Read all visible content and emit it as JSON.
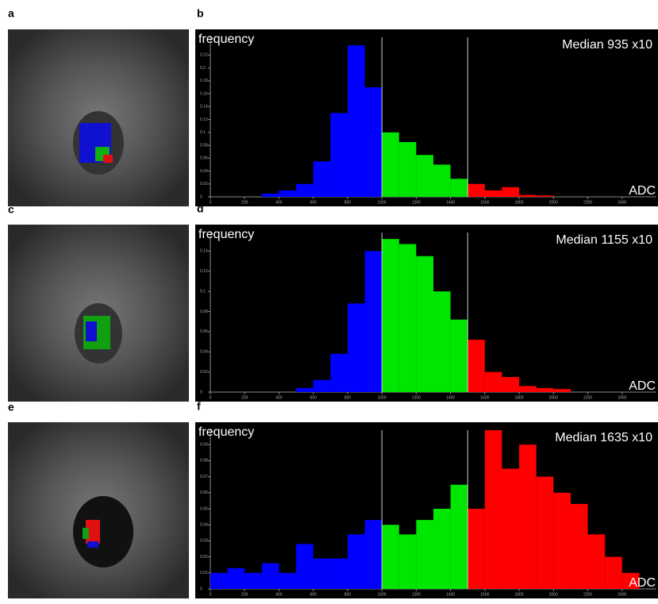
{
  "images": [
    {
      "label": "a"
    },
    {
      "label": "c"
    },
    {
      "label": "e"
    }
  ],
  "chart_data": [
    {
      "type": "histogram",
      "label": "b",
      "y_label": "frequency",
      "annotation": "Median 935 x10",
      "x_label": "ADC",
      "bins": [
        300,
        400,
        500,
        600,
        700,
        800,
        900,
        1000,
        1100,
        1200,
        1300,
        1400,
        1500,
        1600,
        1700,
        1800,
        1900,
        2000
      ],
      "values": [
        0.005,
        0.01,
        0.02,
        0.055,
        0.13,
        0.235,
        0.17,
        0.1,
        0.085,
        0.065,
        0.05,
        0.028,
        0.02,
        0.01,
        0.015,
        0.003,
        0.002
      ],
      "thresholds": [
        1000,
        1500
      ],
      "colors": [
        "#0000ff",
        "#00e600",
        "#ff0000"
      ],
      "xlim": [
        0,
        2600
      ],
      "xticks": [
        0,
        200,
        400,
        600,
        800,
        1000,
        1200,
        1400,
        1600,
        1800,
        2000,
        2200,
        2400
      ],
      "ylim": [
        0,
        0.25
      ],
      "yticks": [
        0,
        0.02,
        0.04,
        0.06,
        0.08,
        0.1,
        0.12,
        0.14,
        0.16,
        0.18,
        0.2,
        0.22
      ]
    },
    {
      "type": "histogram",
      "label": "d",
      "y_label": "frequency",
      "annotation": "Median 1155 x10",
      "x_label": "ADC",
      "bins": [
        500,
        600,
        700,
        800,
        900,
        1000,
        1100,
        1200,
        1300,
        1400,
        1500,
        1600,
        1700,
        1800,
        1900,
        2000,
        2100
      ],
      "values": [
        0.004,
        0.012,
        0.038,
        0.088,
        0.14,
        0.152,
        0.147,
        0.135,
        0.1,
        0.072,
        0.052,
        0.02,
        0.015,
        0.006,
        0.004,
        0.003
      ],
      "thresholds": [
        1000,
        1500
      ],
      "colors": [
        "#0000ff",
        "#00e600",
        "#ff0000"
      ],
      "xlim": [
        0,
        2600
      ],
      "xticks": [
        0,
        200,
        400,
        600,
        800,
        1000,
        1200,
        1400,
        1600,
        1800,
        2000,
        2200,
        2400
      ],
      "ylim": [
        0,
        0.16
      ],
      "yticks": [
        0,
        0.02,
        0.04,
        0.06,
        0.08,
        0.1,
        0.12,
        0.14
      ]
    },
    {
      "type": "histogram",
      "label": "f",
      "y_label": "frequency",
      "annotation": "Median 1635 x10",
      "x_label": "ADC",
      "bins": [
        0,
        100,
        200,
        300,
        400,
        500,
        600,
        700,
        800,
        900,
        1000,
        1100,
        1200,
        1300,
        1400,
        1500,
        1600,
        1700,
        1800,
        1900,
        2000,
        2100,
        2200,
        2300,
        2400,
        2500
      ],
      "values": [
        0.01,
        0.013,
        0.01,
        0.016,
        0.01,
        0.028,
        0.019,
        0.019,
        0.034,
        0.043,
        0.04,
        0.034,
        0.043,
        0.05,
        0.065,
        0.05,
        0.099,
        0.075,
        0.09,
        0.07,
        0.06,
        0.053,
        0.034,
        0.02,
        0.01
      ],
      "thresholds": [
        1000,
        1500
      ],
      "colors": [
        "#0000ff",
        "#00e600",
        "#ff0000"
      ],
      "xlim": [
        0,
        2600
      ],
      "xticks": [
        0,
        200,
        400,
        600,
        800,
        1000,
        1200,
        1400,
        1600,
        1800,
        2000,
        2200,
        2400
      ],
      "ylim": [
        0,
        0.1
      ],
      "yticks": [
        0,
        0.01,
        0.02,
        0.03,
        0.04,
        0.05,
        0.06,
        0.07,
        0.08,
        0.09
      ]
    }
  ]
}
